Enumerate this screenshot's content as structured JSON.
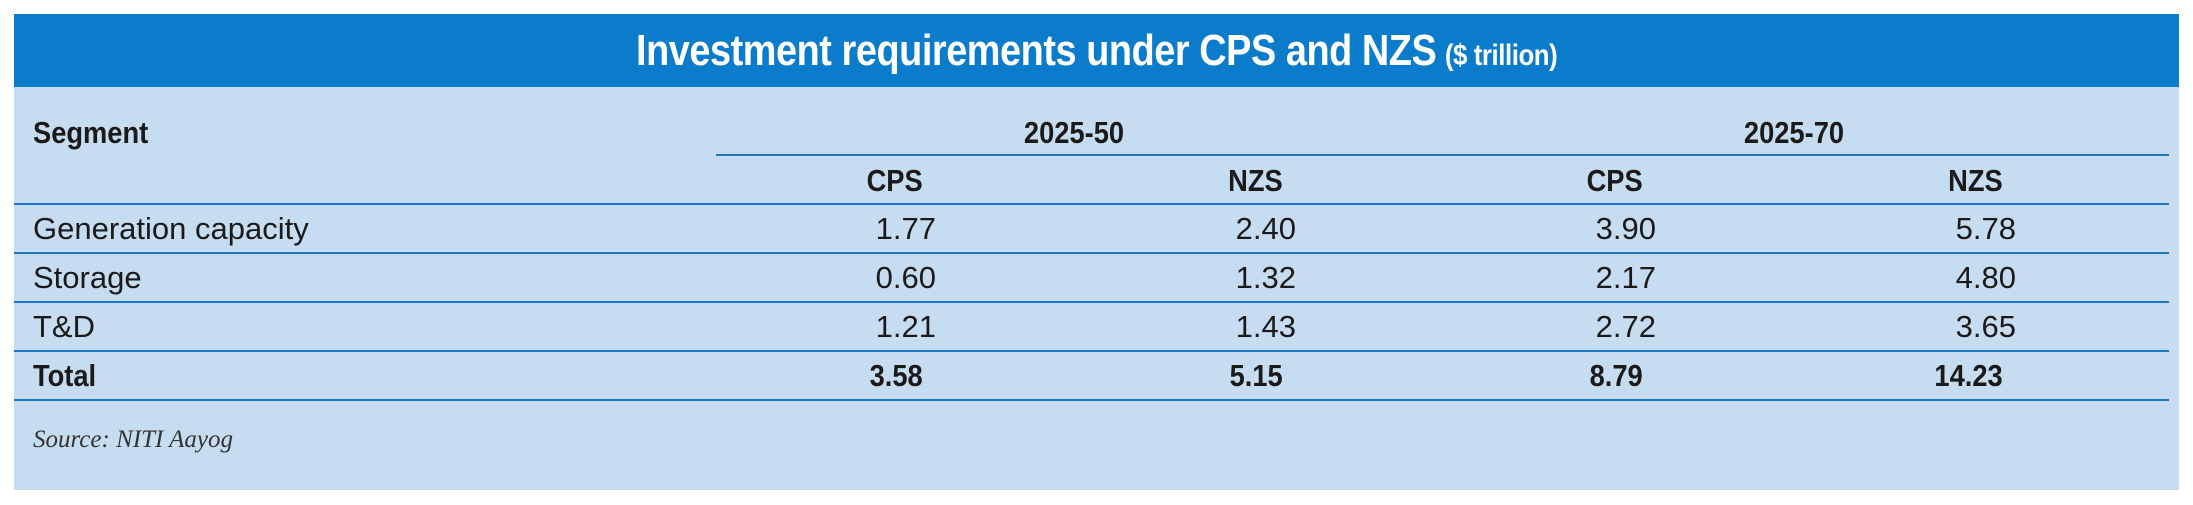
{
  "title": {
    "main": "Investment requirements under CPS and NZS",
    "unit": "($ trillion)"
  },
  "table": {
    "segment_header": "Segment",
    "period_headers": [
      "2025-50",
      "2025-70"
    ],
    "sub_headers": [
      "CPS",
      "NZS",
      "CPS",
      "NZS"
    ],
    "rows": [
      {
        "label": "Generation capacity",
        "values": [
          "1.77",
          "2.40",
          "3.90",
          "5.78"
        ]
      },
      {
        "label": "Storage",
        "values": [
          "0.60",
          "1.32",
          "2.17",
          "4.80"
        ]
      },
      {
        "label": "T&D",
        "values": [
          "1.21",
          "1.43",
          "2.72",
          "3.65"
        ]
      }
    ],
    "total": {
      "label": "Total",
      "values": [
        "3.58",
        "5.15",
        "8.79",
        "14.23"
      ]
    }
  },
  "source": "Source: NITI Aayog",
  "colors": {
    "title_background": "#0b7ccc",
    "panel_background": "#c6dcf1",
    "rule_lines": "#1f78c4"
  }
}
